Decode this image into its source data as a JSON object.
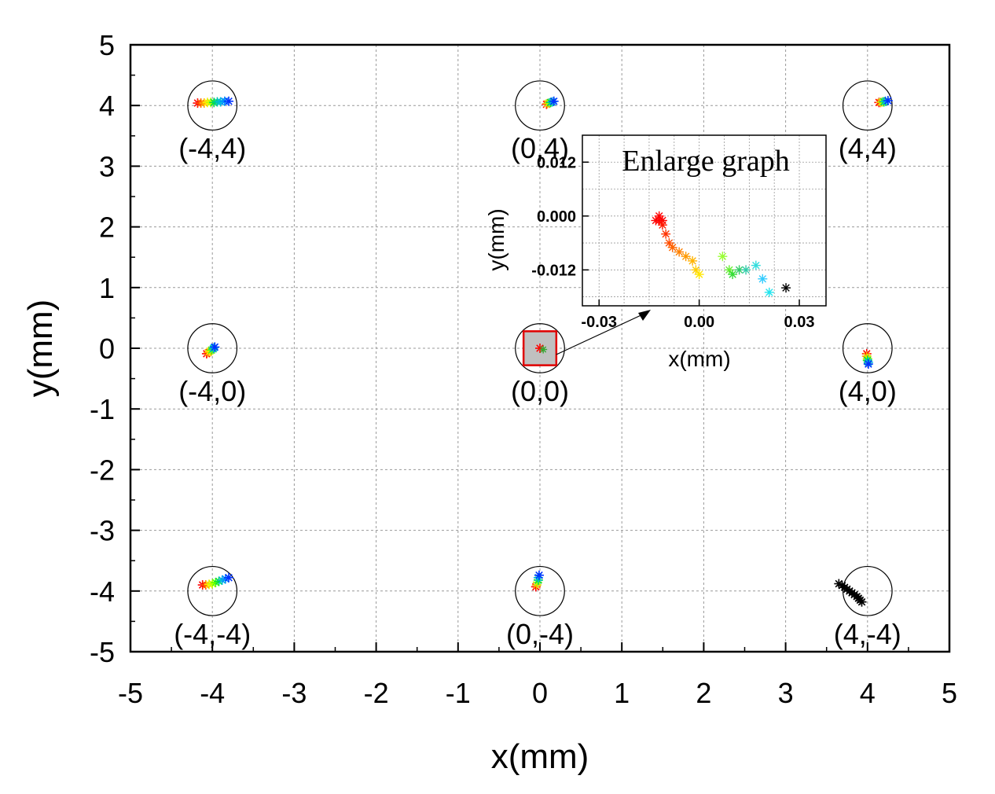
{
  "chart_data": {
    "type": "scatter",
    "main": {
      "xlabel": "x(mm)",
      "ylabel": "y(mm)",
      "xlim": [
        -5,
        5
      ],
      "ylim": [
        -5,
        5
      ],
      "xticks": [
        -5,
        -4,
        -3,
        -2,
        -1,
        0,
        1,
        2,
        3,
        4,
        5
      ],
      "yticks": [
        -5,
        -4,
        -3,
        -2,
        -1,
        0,
        1,
        2,
        3,
        4,
        5
      ],
      "grid": true,
      "circle_radius": 0.3,
      "targets": [
        {
          "label": "(-4,4)",
          "x": -4,
          "y": 4,
          "points": [
            [
              -4.18,
              4.04
            ],
            [
              -4.14,
              4.04
            ],
            [
              -4.1,
              4.04
            ],
            [
              -4.06,
              4.05
            ],
            [
              -4.02,
              4.05
            ],
            [
              -3.98,
              4.05
            ],
            [
              -3.94,
              4.06
            ],
            [
              -3.9,
              4.06
            ],
            [
              -3.85,
              4.07
            ],
            [
              -3.8,
              4.07
            ]
          ]
        },
        {
          "label": "(0,4)",
          "x": 0,
          "y": 4,
          "points": [
            [
              0.08,
              4.02
            ],
            [
              0.09,
              4.03
            ],
            [
              0.11,
              4.04
            ],
            [
              0.13,
              4.05
            ],
            [
              0.15,
              4.06
            ],
            [
              0.17,
              4.07
            ]
          ]
        },
        {
          "label": "(4,4)",
          "x": 4,
          "y": 4,
          "points": [
            [
              4.14,
              4.05
            ],
            [
              4.16,
              4.05
            ],
            [
              4.18,
              4.06
            ],
            [
              4.2,
              4.06
            ],
            [
              4.22,
              4.07
            ],
            [
              4.25,
              4.08
            ]
          ]
        },
        {
          "label": "(-4,0)",
          "x": -4,
          "y": 0,
          "points": [
            [
              -4.07,
              -0.09
            ],
            [
              -4.05,
              -0.07
            ],
            [
              -4.03,
              -0.05
            ],
            [
              -4.01,
              -0.03
            ],
            [
              -3.99,
              -0.01
            ],
            [
              -3.98,
              0.01
            ],
            [
              -3.97,
              0.02
            ]
          ]
        },
        {
          "label": "(0,0)",
          "x": 0,
          "y": 0,
          "points": [
            [
              -0.02,
              0.0
            ],
            [
              -0.01,
              -0.01
            ],
            [
              0.0,
              0.0
            ],
            [
              0.01,
              -0.01
            ],
            [
              0.02,
              -0.01
            ],
            [
              0.03,
              -0.02
            ]
          ]
        },
        {
          "label": "(4,0)",
          "x": 4,
          "y": 0,
          "points": [
            [
              3.99,
              -0.09
            ],
            [
              3.99,
              -0.13
            ],
            [
              4.0,
              -0.17
            ],
            [
              4.0,
              -0.2
            ],
            [
              4.01,
              -0.23
            ],
            [
              4.01,
              -0.26
            ]
          ]
        },
        {
          "label": "(-4,-4)",
          "x": -4,
          "y": -4,
          "points": [
            [
              -4.12,
              -3.9
            ],
            [
              -4.08,
              -3.9
            ],
            [
              -4.04,
              -3.89
            ],
            [
              -4.0,
              -3.88
            ],
            [
              -3.96,
              -3.86
            ],
            [
              -3.92,
              -3.84
            ],
            [
              -3.88,
              -3.82
            ],
            [
              -3.84,
              -3.8
            ],
            [
              -3.8,
              -3.78
            ]
          ]
        },
        {
          "label": "(0,-4)",
          "x": 0,
          "y": -4,
          "points": [
            [
              -0.05,
              -3.93
            ],
            [
              -0.04,
              -3.9
            ],
            [
              -0.03,
              -3.86
            ],
            [
              -0.02,
              -3.82
            ],
            [
              -0.02,
              -3.78
            ],
            [
              -0.01,
              -3.74
            ]
          ]
        },
        {
          "label": "(4,-4)",
          "x": 4,
          "y": -4,
          "points": [
            [
              3.65,
              -3.88
            ],
            [
              3.69,
              -3.91
            ],
            [
              3.72,
              -3.94
            ],
            [
              3.75,
              -3.97
            ],
            [
              3.78,
              -4.0
            ],
            [
              3.81,
              -4.03
            ],
            [
              3.84,
              -4.06
            ],
            [
              3.87,
              -4.09
            ],
            [
              3.89,
              -4.12
            ],
            [
              3.91,
              -4.15
            ],
            [
              3.93,
              -4.18
            ]
          ]
        }
      ],
      "highlight_box": {
        "x": [
          -0.2,
          0.2
        ],
        "y": [
          -0.28,
          0.28
        ]
      }
    },
    "inset": {
      "title": "Enlarge graph",
      "xlabel": "x(mm)",
      "ylabel": "y(mm)",
      "xlim": [
        -0.035,
        0.038
      ],
      "ylim": [
        -0.02,
        0.018
      ],
      "xticks": [
        -0.03,
        0.0,
        0.03
      ],
      "xtick_labels": [
        "-0.03",
        "0.00",
        "0.03"
      ],
      "yticks": [
        0.012,
        0.0,
        -0.012
      ],
      "ytick_labels": [
        "0.012",
        "0.000",
        "-0.012"
      ],
      "points": [
        [
          -0.013,
          -0.001
        ],
        [
          -0.012,
          -0.001
        ],
        [
          -0.011,
          -0.001
        ],
        [
          -0.012,
          0.0
        ],
        [
          -0.011,
          -0.002
        ],
        [
          -0.01,
          -0.004
        ],
        [
          -0.009,
          -0.006
        ],
        [
          -0.008,
          -0.007
        ],
        [
          -0.006,
          -0.008
        ],
        [
          -0.004,
          -0.009
        ],
        [
          -0.002,
          -0.01
        ],
        [
          -0.001,
          -0.012
        ],
        [
          0.0,
          -0.013
        ],
        [
          0.007,
          -0.009
        ],
        [
          0.009,
          -0.012
        ],
        [
          0.01,
          -0.013
        ],
        [
          0.012,
          -0.012
        ],
        [
          0.014,
          -0.012
        ],
        [
          0.017,
          -0.011
        ],
        [
          0.019,
          -0.014
        ],
        [
          0.021,
          -0.017
        ],
        [
          0.026,
          -0.016
        ]
      ],
      "colors": [
        "#ff0000",
        "#ff0000",
        "#ff0000",
        "#ff0000",
        "#ff1a00",
        "#ff3300",
        "#ff4d00",
        "#ff6600",
        "#ff8000",
        "#ff9900",
        "#ffb300",
        "#ffcc00",
        "#ffe600",
        "#99ff33",
        "#66ee33",
        "#33dd33",
        "#33cc66",
        "#33ccaa",
        "#33dddd",
        "#33ccff",
        "#22e5ee",
        "#000000"
      ]
    },
    "color_map": [
      "#ff0000",
      "#ff6600",
      "#ffaa00",
      "#ffee00",
      "#bbff00",
      "#55ff00",
      "#00dd44",
      "#00cc99",
      "#00bbdd",
      "#0088ff",
      "#0033ff"
    ]
  }
}
